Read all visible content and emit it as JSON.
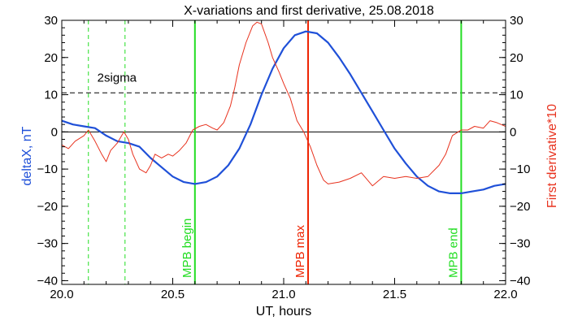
{
  "chart_data": {
    "type": "line",
    "title": "X-variations and first derivative, 25.08.2018",
    "xlabel": "UT, hours",
    "ylabel_left": "deltaX, nT",
    "ylabel_right": "First derivative*10",
    "xlim": [
      20.0,
      22.0
    ],
    "ylim": [
      -41,
      30
    ],
    "x_ticks": [
      20.0,
      20.5,
      21.0,
      21.5,
      22.0
    ],
    "x_tick_labels": [
      "20.0",
      "20.5",
      "21.0",
      "21.5",
      "22.0"
    ],
    "y_ticks": [
      30,
      20,
      10,
      0,
      -10,
      -20,
      -30,
      -40
    ],
    "y_tick_labels": [
      "30",
      "20",
      "10",
      "0",
      "−10",
      "−20",
      "−30",
      "−40"
    ],
    "colors": {
      "deltaX": "#1f50d8",
      "derivative": "#e8321e",
      "mpb_boundary": "#22dd22",
      "mpb_max": "#ee2200",
      "label_blue": "#1f50d8",
      "label_red": "#e8321e"
    },
    "series": [
      {
        "name": "deltaX",
        "axis": "left",
        "x": [
          20.0,
          20.05,
          20.1,
          20.15,
          20.2,
          20.25,
          20.3,
          20.35,
          20.4,
          20.45,
          20.5,
          20.55,
          20.6,
          20.65,
          20.7,
          20.75,
          20.8,
          20.85,
          20.9,
          20.95,
          21.0,
          21.05,
          21.1,
          21.15,
          21.2,
          21.25,
          21.3,
          21.35,
          21.4,
          21.45,
          21.5,
          21.55,
          21.6,
          21.65,
          21.7,
          21.75,
          21.8,
          21.85,
          21.9,
          21.95,
          22.0
        ],
        "values": [
          3,
          2,
          1.5,
          1,
          -1,
          -2.5,
          -3,
          -4,
          -7,
          -9.5,
          -12,
          -13.5,
          -14,
          -13.5,
          -12,
          -9,
          -4.5,
          2,
          10,
          17,
          22.5,
          26,
          27,
          26.5,
          24,
          20,
          15.5,
          10.5,
          5.5,
          0.5,
          -4.5,
          -8.5,
          -12,
          -14.5,
          -16,
          -16.5,
          -16.5,
          -16,
          -15.5,
          -14.5,
          -14
        ]
      },
      {
        "name": "derivative",
        "axis": "left",
        "x": [
          20.0,
          20.03,
          20.06,
          20.1,
          20.12,
          20.15,
          20.18,
          20.2,
          20.22,
          20.25,
          20.28,
          20.3,
          20.32,
          20.35,
          20.38,
          20.4,
          20.42,
          20.45,
          20.48,
          20.5,
          20.53,
          20.56,
          20.59,
          20.62,
          20.65,
          20.68,
          20.7,
          20.73,
          20.76,
          20.78,
          20.8,
          20.83,
          20.86,
          20.88,
          20.9,
          20.93,
          20.95,
          20.98,
          21.0,
          21.03,
          21.06,
          21.09,
          21.12,
          21.15,
          21.18,
          21.2,
          21.25,
          21.3,
          21.35,
          21.4,
          21.45,
          21.5,
          21.55,
          21.6,
          21.65,
          21.7,
          21.73,
          21.76,
          21.8,
          21.83,
          21.86,
          21.9,
          21.93,
          21.96,
          22.0
        ],
        "values": [
          -3.5,
          -4.5,
          -2.5,
          -1,
          0.5,
          -2.5,
          -6,
          -8,
          -5,
          -3,
          0,
          -2,
          -6,
          -10,
          -11,
          -9,
          -6,
          -7,
          -6,
          -6.5,
          -5,
          -3,
          0.5,
          1.5,
          2,
          1,
          0.5,
          2.5,
          7,
          12,
          18,
          24,
          28.5,
          29.5,
          29,
          24,
          20,
          16,
          13,
          9,
          3,
          0,
          -4,
          -9,
          -13,
          -14,
          -13.5,
          -12.5,
          -11,
          -14.5,
          -12,
          -12.5,
          -12,
          -12.5,
          -12,
          -9,
          -6,
          -1,
          0.5,
          0.5,
          1.5,
          1,
          3,
          2.5,
          1.5
        ]
      }
    ],
    "horizontal_lines": [
      {
        "y": 10.5,
        "style": "dashed",
        "color": "#000000"
      },
      {
        "y": 0,
        "style": "solid",
        "color": "#000000"
      }
    ],
    "vertical_lines": [
      {
        "x": 20.12,
        "style": "dashed",
        "color": "#22dd22"
      },
      {
        "x": 20.285,
        "style": "dashed",
        "color": "#22dd22"
      },
      {
        "x": 20.6,
        "style": "solid",
        "color": "#22dd22",
        "label": "MPB begin"
      },
      {
        "x": 21.11,
        "style": "solid",
        "color": "#ee2200",
        "label": "MPB max"
      },
      {
        "x": 21.8,
        "style": "solid",
        "color": "#22dd22",
        "label": "MPB end"
      }
    ],
    "annotations": [
      {
        "text": "2sigma",
        "x": 20.16,
        "y": 13.5
      }
    ],
    "grid": false
  }
}
